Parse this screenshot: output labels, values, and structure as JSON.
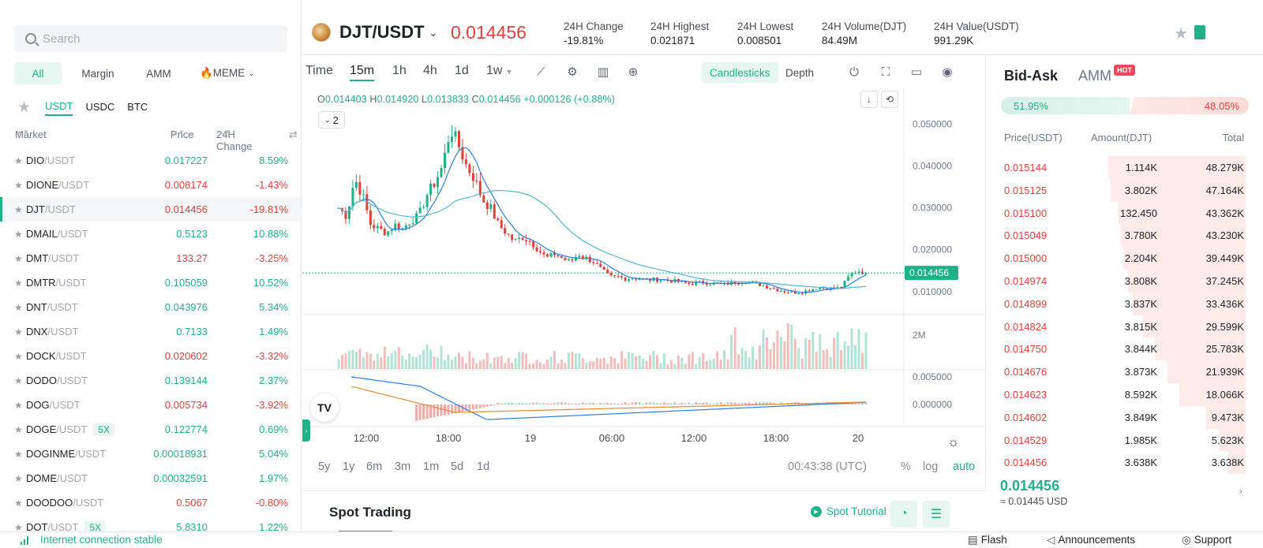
{
  "search": {
    "placeholder": "Search"
  },
  "category_tabs": [
    {
      "label": "All",
      "active": true
    },
    {
      "label": "Margin"
    },
    {
      "label": "AMM"
    },
    {
      "label": "🔥MEME"
    }
  ],
  "quote_tabs": [
    {
      "label": "USDT",
      "active": true
    },
    {
      "label": "USDC"
    },
    {
      "label": "BTC"
    }
  ],
  "market_headers": {
    "market": "Market",
    "price": "Price",
    "change": "24H Change"
  },
  "markets": [
    {
      "base": "DIO",
      "quote": "/USDT",
      "price": "0.017227",
      "change": "8.59%",
      "dir": "up"
    },
    {
      "base": "DIONE",
      "quote": "/USDT",
      "price": "0.008174",
      "change": "-1.43%",
      "dir": "down"
    },
    {
      "base": "DJT",
      "quote": "/USDT",
      "price": "0.014456",
      "change": "-19.81%",
      "dir": "down",
      "selected": true
    },
    {
      "base": "DMAIL",
      "quote": "/USDT",
      "price": "0.5123",
      "change": "10.88%",
      "dir": "up"
    },
    {
      "base": "DMT",
      "quote": "/USDT",
      "price": "133.27",
      "change": "-3.25%",
      "dir": "down"
    },
    {
      "base": "DMTR",
      "quote": "/USDT",
      "price": "0.105059",
      "change": "10.52%",
      "dir": "up"
    },
    {
      "base": "DNT",
      "quote": "/USDT",
      "price": "0.043976",
      "change": "5.34%",
      "dir": "up"
    },
    {
      "base": "DNX",
      "quote": "/USDT",
      "price": "0.7133",
      "change": "1.49%",
      "dir": "up"
    },
    {
      "base": "DOCK",
      "quote": "/USDT",
      "price": "0.020602",
      "change": "-3.32%",
      "dir": "down"
    },
    {
      "base": "DODO",
      "quote": "/USDT",
      "price": "0.139144",
      "change": "2.37%",
      "dir": "up"
    },
    {
      "base": "DOG",
      "quote": "/USDT",
      "price": "0.005734",
      "change": "-3.92%",
      "dir": "down"
    },
    {
      "base": "DOGE",
      "quote": "/USDT",
      "price": "0.122774",
      "change": "0.69%",
      "dir": "up",
      "leverage": "5X"
    },
    {
      "base": "DOGINME",
      "quote": "/USDT",
      "price": "0.00018931",
      "change": "5.04%",
      "dir": "up"
    },
    {
      "base": "DOME",
      "quote": "/USDT",
      "price": "0.00032591",
      "change": "1.97%",
      "dir": "up"
    },
    {
      "base": "DOODOO",
      "quote": "/USDT",
      "price": "0.5067",
      "change": "-0.80%",
      "dir": "down"
    },
    {
      "base": "DOT",
      "quote": "/USDT",
      "price": "5.8310",
      "change": "1.22%",
      "dir": "up",
      "leverage": "5X"
    }
  ],
  "header": {
    "pair": "DJT/USDT",
    "last_price": "0.014456",
    "stats": [
      {
        "label": "24H Change",
        "value": "-19.81%",
        "dir": "down"
      },
      {
        "label": "24H Highest",
        "value": "0.021871"
      },
      {
        "label": "24H Lowest",
        "value": "0.008501"
      },
      {
        "label": "24H Volume(DJT)",
        "value": "84.49M"
      },
      {
        "label": "24H Value(USDT)",
        "value": "991.29K"
      }
    ]
  },
  "chart_toolbar": {
    "intervals": [
      "Time",
      "15m",
      "1h",
      "4h",
      "1d",
      "1w"
    ],
    "active_interval": "15m",
    "chart_types": [
      "Candlesticks",
      "Depth"
    ],
    "active_chart_type": "Candlesticks"
  },
  "ohlc": {
    "o": "0.014403",
    "h": "0.014920",
    "l": "0.013833",
    "c": "0.014456",
    "chg": "+0.000126 (+0.88%)"
  },
  "indicator_count": "2",
  "chart_data": {
    "type": "candlestick",
    "price_axis": [
      "0.050000",
      "0.040000",
      "0.030000",
      "0.020000",
      "0.010000"
    ],
    "ylim": [
      0.0045,
      0.055
    ],
    "last_price_label": "0.014456",
    "volume_axis_label": "2M",
    "macd_axis": [
      "0.005000",
      "0.000000"
    ],
    "time_axis": [
      "12:00",
      "18:00",
      "19",
      "06:00",
      "12:00",
      "18:00",
      "20"
    ],
    "close_series": [
      0.03,
      0.028,
      0.037,
      0.033,
      0.026,
      0.025,
      0.024,
      0.026,
      0.025,
      0.027,
      0.028,
      0.033,
      0.036,
      0.04,
      0.049,
      0.045,
      0.04,
      0.037,
      0.032,
      0.03,
      0.026,
      0.024,
      0.022,
      0.023,
      0.022,
      0.02,
      0.018,
      0.019,
      0.018,
      0.017,
      0.019,
      0.018,
      0.017,
      0.015,
      0.0135,
      0.0135,
      0.013,
      0.0133,
      0.013,
      0.0128,
      0.0129,
      0.0127,
      0.0125,
      0.0122,
      0.0118,
      0.0122,
      0.0121,
      0.0119,
      0.0117,
      0.012,
      0.0123,
      0.0125,
      0.0121,
      0.0115,
      0.011,
      0.0104,
      0.01,
      0.0098,
      0.0099,
      0.0105,
      0.011,
      0.0108,
      0.0107,
      0.0112,
      0.014,
      0.015,
      0.01445
    ]
  },
  "range_buttons": [
    "5y",
    "1y",
    "6m",
    "3m",
    "1m",
    "5d",
    "1d"
  ],
  "clock": "00:43:38 (UTC)",
  "scale_options": {
    "percent": "%",
    "log": "log",
    "auto": "auto"
  },
  "spot": {
    "title": "Spot Trading",
    "tutorial": "Spot Tutorial"
  },
  "orderbook": {
    "tabs": {
      "bidask": "Bid-Ask",
      "amm": "AMM",
      "hot": "HOT"
    },
    "buy_ratio": "51.95%",
    "sell_ratio": "48.05%",
    "buy_ratio_value": 51.95,
    "headers": {
      "price": "Price(USDT)",
      "amount": "Amount(DJT)",
      "total": "Total"
    },
    "asks": [
      {
        "price": "0.015144",
        "amount": "1.114K",
        "total": "48.279K",
        "depth": 0.56
      },
      {
        "price": "0.015125",
        "amount": "3.802K",
        "total": "47.164K",
        "depth": 0.55
      },
      {
        "price": "0.015100",
        "amount": "132.450",
        "total": "43.362K",
        "depth": 0.52
      },
      {
        "price": "0.015049",
        "amount": "3.780K",
        "total": "43.230K",
        "depth": 0.51
      },
      {
        "price": "0.015000",
        "amount": "2.204K",
        "total": "39.449K",
        "depth": 0.5
      },
      {
        "price": "0.014974",
        "amount": "3.808K",
        "total": "37.245K",
        "depth": 0.48
      },
      {
        "price": "0.014899",
        "amount": "3.837K",
        "total": "33.436K",
        "depth": 0.46
      },
      {
        "price": "0.014824",
        "amount": "3.815K",
        "total": "29.599K",
        "depth": 0.42
      },
      {
        "price": "0.014750",
        "amount": "3.844K",
        "total": "25.783K",
        "depth": 0.37
      },
      {
        "price": "0.014676",
        "amount": "3.873K",
        "total": "21.939K",
        "depth": 0.32
      },
      {
        "price": "0.014623",
        "amount": "8.592K",
        "total": "18.066K",
        "depth": 0.27
      },
      {
        "price": "0.014602",
        "amount": "3.849K",
        "total": "9.473K",
        "depth": 0.16
      },
      {
        "price": "0.014529",
        "amount": "1.985K",
        "total": "5.623K",
        "depth": 0.11
      },
      {
        "price": "0.014456",
        "amount": "3.638K",
        "total": "3.638K",
        "depth": 0.07
      }
    ],
    "last_price": "0.014456",
    "fiat": "≈ 0.01445 USD"
  },
  "footer": {
    "status": "Internet connection stable",
    "links": [
      "Flash",
      "Announcements",
      "Support"
    ]
  },
  "colors": {
    "up": "#20b286",
    "down": "#e0413b",
    "accent": "#20b286"
  }
}
